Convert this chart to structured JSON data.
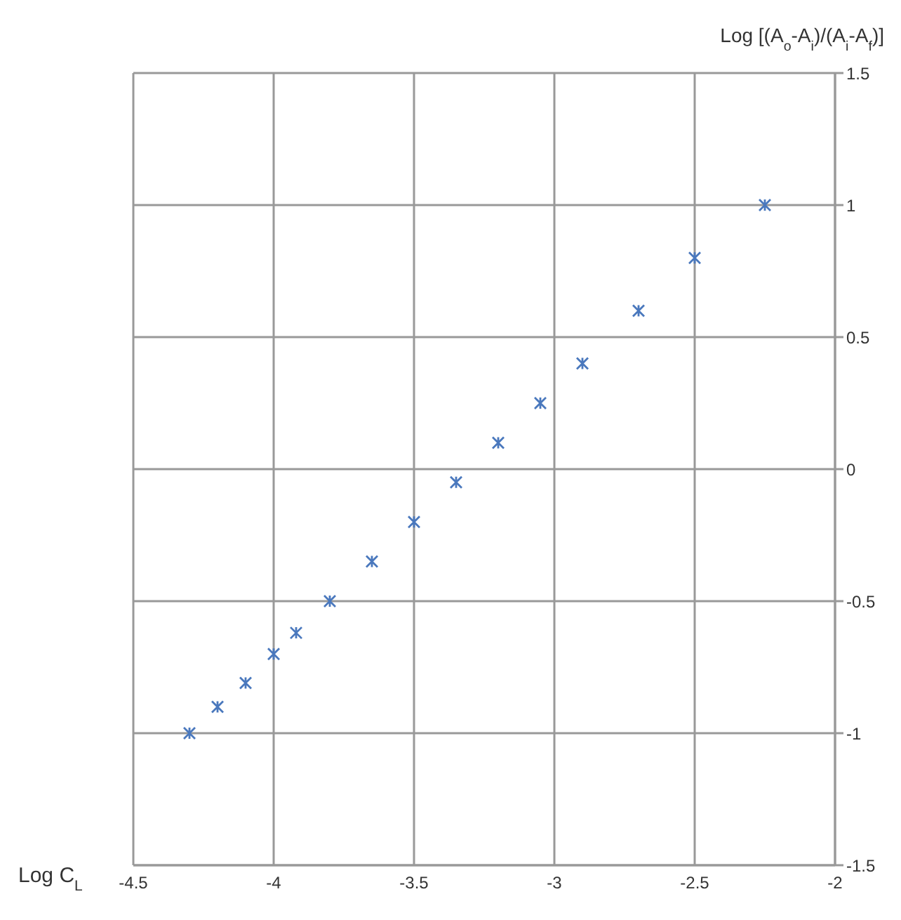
{
  "chart_data": {
    "type": "scatter",
    "xlabel": "Log C$_{L}$",
    "ylabel": "Log [(A$_{o}$-A$_{i}$)/(A$_{i}$-A$_{f}$)]",
    "x": [
      -4.3,
      -4.2,
      -4.1,
      -4.0,
      -3.92,
      -3.8,
      -3.65,
      -3.5,
      -3.35,
      -3.2,
      -3.05,
      -2.9,
      -2.7,
      -2.5,
      -2.25
    ],
    "series": [
      {
        "color": "#4a78bd",
        "values": [
          -1.0,
          -0.9,
          -0.81,
          -0.7,
          -0.62,
          -0.5,
          -0.35,
          -0.2,
          -0.05,
          0.1,
          0.25,
          0.4,
          0.6,
          0.8,
          1.0
        ]
      }
    ],
    "xlim": [
      -4.5,
      -2
    ],
    "xticks": [
      -4.5,
      -4,
      -3.5,
      -3,
      -2.5,
      -2
    ],
    "ylim": [
      -1.5,
      1.5
    ],
    "yticks": [
      -1.5,
      -1,
      -0.5,
      0,
      0.5,
      1,
      1.5
    ],
    "grid": true,
    "marker": "cross"
  }
}
